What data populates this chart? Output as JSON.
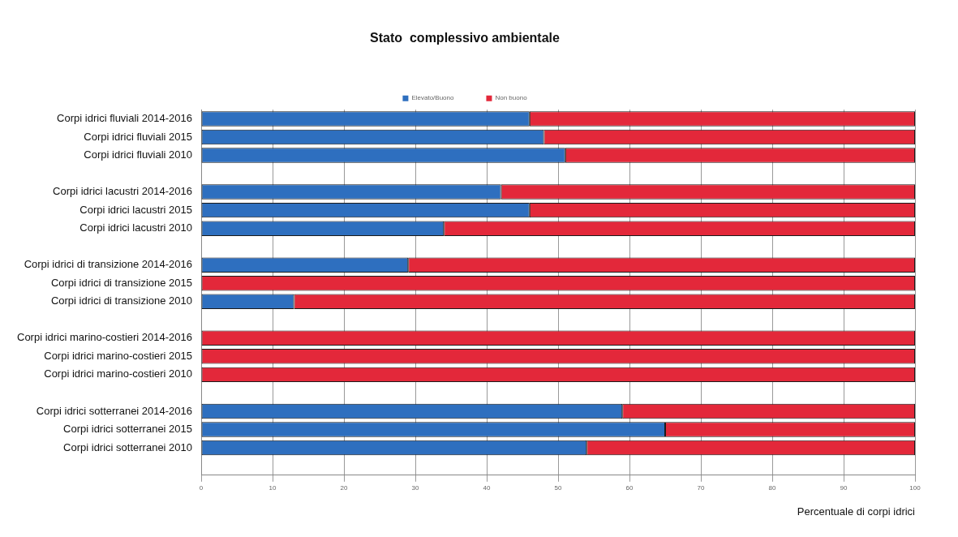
{
  "chart_data": {
    "type": "bar",
    "orientation": "horizontal",
    "stacked": true,
    "title": "Stato  complessivo ambientale",
    "xlabel": "Percentuale di corpi idrici",
    "categories": [
      "Corpi idrici fluviali 2014-2016",
      "Corpi idrici fluviali 2015",
      "Corpi idrici fluviali 2010",
      null,
      "Corpi idrici lacustri 2014-2016",
      "Corpi idrici lacustri 2015",
      "Corpi idrici lacustri 2010",
      null,
      "Corpi idrici di transizione 2014-2016",
      "Corpi idrici di transizione 2015",
      "Corpi idrici di transizione 2010",
      null,
      "Corpi idrici marino-costieri 2014-2016",
      "Corpi idrici marino-costieri 2015",
      "Corpi idrici marino-costieri 2010",
      null,
      "Corpi idrici sotterranei 2014-2016",
      "Corpi idrici sotterranei 2015",
      "Corpi idrici sotterranei 2010",
      null
    ],
    "series": [
      {
        "name": "Elevato/Buono",
        "color": "#2e6fbf",
        "values": [
          46,
          48,
          51,
          null,
          42,
          46,
          34,
          null,
          29,
          0,
          13,
          null,
          0,
          0,
          0,
          null,
          59,
          65,
          54,
          null
        ]
      },
      {
        "name": "Non buono",
        "color": "#e3283a",
        "values": [
          54,
          52,
          49,
          null,
          58,
          54,
          66,
          null,
          71,
          100,
          87,
          null,
          100,
          100,
          100,
          null,
          41,
          35,
          46,
          null
        ]
      }
    ],
    "xlim": [
      0,
      100
    ],
    "xticks": [
      0,
      10,
      20,
      30,
      40,
      50,
      60,
      70,
      80,
      90,
      100
    ],
    "grid": "x",
    "legend": "top"
  }
}
